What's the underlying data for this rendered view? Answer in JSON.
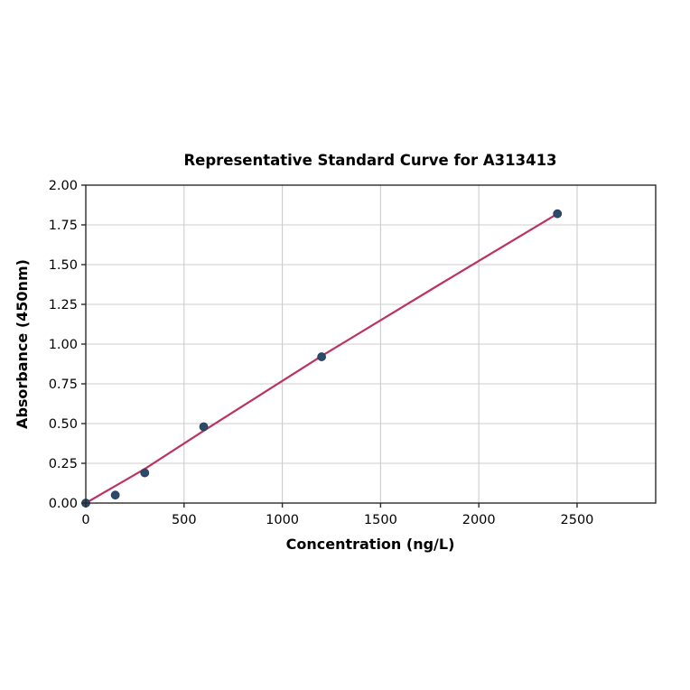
{
  "chart_data": {
    "type": "scatter",
    "title": "Representative Standard Curve for A313413",
    "xlabel": "Concentration (ng/L)",
    "ylabel": "Absorbance (450nm)",
    "x": [
      0,
      150,
      300,
      600,
      1200,
      2400
    ],
    "y": [
      0.0,
      0.05,
      0.19,
      0.48,
      0.92,
      1.82
    ],
    "fit_line": [
      [
        0,
        0.0
      ],
      [
        300,
        0.215
      ],
      [
        600,
        0.455
      ],
      [
        1200,
        0.925
      ],
      [
        1800,
        1.375
      ],
      [
        2400,
        1.82
      ]
    ],
    "xlim": [
      0,
      2900
    ],
    "ylim": [
      0,
      2.0
    ],
    "xticks": [
      0,
      500,
      1000,
      1500,
      2000,
      2500
    ],
    "xtick_labels": [
      "0",
      "500",
      "1000",
      "1500",
      "2000",
      "2500"
    ],
    "yticks": [
      0.0,
      0.25,
      0.5,
      0.75,
      1.0,
      1.25,
      1.5,
      1.75,
      2.0
    ],
    "ytick_labels": [
      "0.00",
      "0.25",
      "0.50",
      "0.75",
      "1.00",
      "1.25",
      "1.50",
      "1.75",
      "2.00"
    ],
    "grid": true,
    "legend_position": "none",
    "colors": {
      "point": "#2e4a6b",
      "point_edge": "#24405e",
      "line": "#bb3360",
      "grid": "#cccccc",
      "axis": "#2a2a2a",
      "text": "#000000",
      "background": "#ffffff"
    }
  }
}
